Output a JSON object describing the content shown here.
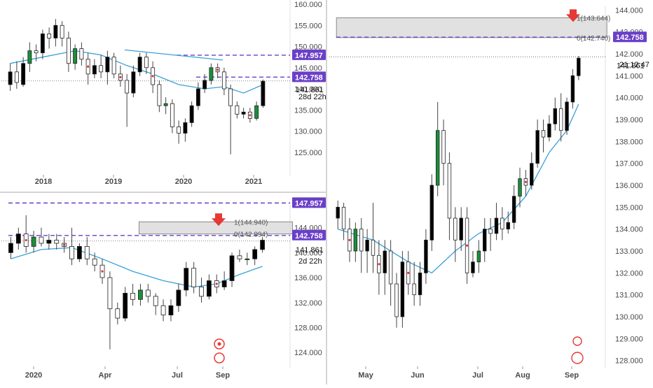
{
  "colors": {
    "up_candle": "#000000",
    "down_candle": "#ffffff",
    "accent_up": "#1b8f3a",
    "accent_down": "#e0303a",
    "ma_line": "#39a0d8",
    "level_line": "#6a3fc8",
    "label_bg": "#6a3fc8",
    "label_text": "#ffffff",
    "zone_fill": "#d9d9d9",
    "arrow": "#e53935",
    "grid_sep": "#e0e0e0",
    "axis_text": "#4a4a4a"
  },
  "icons": [
    "alert-target-icon",
    "event-flag-icon",
    "arrow-down-icon"
  ],
  "chart_data": [
    {
      "type": "candlestick",
      "title": "",
      "placement": "top-left",
      "x_ticks": [
        "2018",
        "2019",
        "2020",
        "2021"
      ],
      "y_ticks": [
        "125.000",
        "130.000",
        "135.000",
        "140.000",
        "145.000",
        "150.000",
        "155.000",
        "160.000"
      ],
      "ylim": [
        120,
        161
      ],
      "price_labels": [
        {
          "value": 147.957,
          "text": "147.957",
          "style": "purple"
        },
        {
          "value": 142.758,
          "text": "142.758",
          "style": "purple"
        },
        {
          "value": 141.861,
          "text": "141.861",
          "style": "plain"
        },
        {
          "text": "28d 22h",
          "style": "countdown"
        }
      ],
      "horizontal_levels": [
        147.957,
        142.758,
        141.861
      ],
      "candles": [
        {
          "o": 141.0,
          "c": 144.0,
          "h": 146.0,
          "l": 139.5
        },
        {
          "o": 144.0,
          "c": 141.5,
          "h": 146.5,
          "l": 140.0
        },
        {
          "o": 141.0,
          "c": 146.0,
          "h": 147.5,
          "l": 140.5
        },
        {
          "o": 146.0,
          "c": 149.0,
          "h": 151.0,
          "l": 144.0
        },
        {
          "o": 149.0,
          "c": 148.5,
          "h": 150.5,
          "l": 146.5
        },
        {
          "o": 148.5,
          "c": 153.0,
          "h": 154.0,
          "l": 147.0
        },
        {
          "o": 153.0,
          "c": 152.0,
          "h": 154.5,
          "l": 149.5
        },
        {
          "o": 152.0,
          "c": 155.0,
          "h": 156.5,
          "l": 150.0
        },
        {
          "o": 155.0,
          "c": 152.0,
          "h": 156.0,
          "l": 150.0
        },
        {
          "o": 152.0,
          "c": 146.0,
          "h": 153.5,
          "l": 144.0
        },
        {
          "o": 146.0,
          "c": 149.5,
          "h": 150.5,
          "l": 144.5
        },
        {
          "o": 149.5,
          "c": 147.0,
          "h": 151.0,
          "l": 145.5
        },
        {
          "o": 147.0,
          "c": 143.5,
          "h": 148.5,
          "l": 141.0
        },
        {
          "o": 143.5,
          "c": 145.5,
          "h": 147.0,
          "l": 142.5
        },
        {
          "o": 145.5,
          "c": 144.0,
          "h": 148.0,
          "l": 142.5
        },
        {
          "o": 144.0,
          "c": 147.5,
          "h": 149.0,
          "l": 141.0
        },
        {
          "o": 147.5,
          "c": 143.5,
          "h": 148.5,
          "l": 142.5
        },
        {
          "o": 143.5,
          "c": 142.0,
          "h": 145.5,
          "l": 140.5
        },
        {
          "o": 142.0,
          "c": 139.0,
          "h": 143.5,
          "l": 131.0
        },
        {
          "o": 139.0,
          "c": 144.0,
          "h": 145.5,
          "l": 138.0
        },
        {
          "o": 144.0,
          "c": 147.5,
          "h": 148.5,
          "l": 143.0
        },
        {
          "o": 147.5,
          "c": 145.0,
          "h": 148.5,
          "l": 143.5
        },
        {
          "o": 145.0,
          "c": 141.0,
          "h": 146.5,
          "l": 139.0
        },
        {
          "o": 141.0,
          "c": 136.0,
          "h": 142.0,
          "l": 134.5
        },
        {
          "o": 136.0,
          "c": 136.5,
          "h": 138.0,
          "l": 134.0
        },
        {
          "o": 136.5,
          "c": 131.0,
          "h": 137.5,
          "l": 129.5
        },
        {
          "o": 131.0,
          "c": 129.5,
          "h": 132.5,
          "l": 127.0
        },
        {
          "o": 129.5,
          "c": 132.0,
          "h": 133.0,
          "l": 127.5
        },
        {
          "o": 132.0,
          "c": 136.0,
          "h": 137.0,
          "l": 131.0
        },
        {
          "o": 136.0,
          "c": 140.0,
          "h": 141.5,
          "l": 135.0
        },
        {
          "o": 140.0,
          "c": 142.0,
          "h": 143.5,
          "l": 139.0
        },
        {
          "o": 142.0,
          "c": 145.0,
          "h": 146.0,
          "l": 141.0
        },
        {
          "o": 145.0,
          "c": 144.0,
          "h": 146.0,
          "l": 142.5
        },
        {
          "o": 144.0,
          "c": 140.0,
          "h": 145.0,
          "l": 138.5
        },
        {
          "o": 140.0,
          "c": 136.0,
          "h": 141.0,
          "l": 124.5
        },
        {
          "o": 136.0,
          "c": 134.0,
          "h": 137.0,
          "l": 133.0
        },
        {
          "o": 134.0,
          "c": 134.5,
          "h": 135.5,
          "l": 133.0
        },
        {
          "o": 134.5,
          "c": 133.0,
          "h": 135.5,
          "l": 132.0
        },
        {
          "o": 133.0,
          "c": 136.0,
          "h": 137.0,
          "l": 132.5
        },
        {
          "o": 136.0,
          "c": 141.8,
          "h": 142.2,
          "l": 135.5
        }
      ],
      "ma_points": [
        [
          0,
          146.0
        ],
        [
          5,
          147.5
        ],
        [
          10,
          149.0
        ],
        [
          14,
          148.0
        ],
        [
          18,
          145.5
        ],
        [
          22,
          143.5
        ],
        [
          26,
          141.0
        ],
        [
          30,
          140.0
        ],
        [
          33,
          140.5
        ],
        [
          36,
          139.0
        ],
        [
          39,
          141.0
        ]
      ]
    },
    {
      "type": "candlestick",
      "title": "",
      "placement": "bottom-left",
      "x_ticks": [
        "2020",
        "Apr",
        "Jul",
        "Sep"
      ],
      "y_ticks": [
        "124.000",
        "128.000",
        "132.000",
        "136.000",
        "140.000",
        "144.000"
      ],
      "ylim": [
        122,
        148
      ],
      "price_labels": [
        {
          "value": 147.957,
          "text": "147.957",
          "style": "purple"
        },
        {
          "value": 142.758,
          "text": "142.758",
          "style": "purple"
        },
        {
          "value": 141.861,
          "text": "141.861",
          "style": "plain"
        },
        {
          "text": "2d 22h",
          "style": "countdown"
        }
      ],
      "fib_labels": [
        {
          "value": 144.94,
          "text": "1(144.940)"
        },
        {
          "value": 142.994,
          "text": "0(142.994)"
        }
      ],
      "zone": [
        142.994,
        144.94
      ],
      "horizontal_levels": [
        147.957,
        142.758,
        141.861
      ],
      "candles": [
        {
          "o": 140.0,
          "c": 141.5,
          "h": 142.5,
          "l": 139.0
        },
        {
          "o": 141.5,
          "c": 143.0,
          "h": 144.0,
          "l": 140.5
        },
        {
          "o": 143.0,
          "c": 141.0,
          "h": 146.0,
          "l": 140.0
        },
        {
          "o": 141.0,
          "c": 142.5,
          "h": 143.5,
          "l": 140.0
        },
        {
          "o": 142.5,
          "c": 141.5,
          "h": 144.0,
          "l": 141.0
        },
        {
          "o": 141.5,
          "c": 142.0,
          "h": 143.0,
          "l": 140.5
        },
        {
          "o": 142.0,
          "c": 141.5,
          "h": 143.0,
          "l": 140.5
        },
        {
          "o": 141.5,
          "c": 141.0,
          "h": 142.5,
          "l": 140.0
        },
        {
          "o": 141.0,
          "c": 139.0,
          "h": 144.0,
          "l": 138.0
        },
        {
          "o": 139.0,
          "c": 141.0,
          "h": 141.5,
          "l": 138.5
        },
        {
          "o": 141.0,
          "c": 139.0,
          "h": 142.5,
          "l": 138.0
        },
        {
          "o": 139.0,
          "c": 138.0,
          "h": 140.0,
          "l": 137.0
        },
        {
          "o": 138.0,
          "c": 136.0,
          "h": 139.0,
          "l": 135.0
        },
        {
          "o": 136.0,
          "c": 131.0,
          "h": 137.0,
          "l": 124.5
        },
        {
          "o": 131.0,
          "c": 129.5,
          "h": 132.0,
          "l": 128.5
        },
        {
          "o": 129.5,
          "c": 133.5,
          "h": 134.5,
          "l": 129.0
        },
        {
          "o": 133.5,
          "c": 132.5,
          "h": 135.0,
          "l": 131.5
        },
        {
          "o": 132.5,
          "c": 134.0,
          "h": 135.0,
          "l": 131.5
        },
        {
          "o": 134.0,
          "c": 133.0,
          "h": 135.0,
          "l": 132.0
        },
        {
          "o": 133.0,
          "c": 131.5,
          "h": 133.5,
          "l": 130.0
        },
        {
          "o": 131.5,
          "c": 130.0,
          "h": 132.5,
          "l": 129.0
        },
        {
          "o": 130.0,
          "c": 131.5,
          "h": 132.5,
          "l": 129.0
        },
        {
          "o": 131.5,
          "c": 134.0,
          "h": 135.0,
          "l": 130.5
        },
        {
          "o": 134.0,
          "c": 137.5,
          "h": 138.5,
          "l": 133.0
        },
        {
          "o": 137.5,
          "c": 134.5,
          "h": 138.5,
          "l": 133.5
        },
        {
          "o": 134.5,
          "c": 133.0,
          "h": 136.0,
          "l": 132.0
        },
        {
          "o": 133.0,
          "c": 135.5,
          "h": 136.5,
          "l": 132.5
        },
        {
          "o": 135.5,
          "c": 134.5,
          "h": 136.5,
          "l": 133.5
        },
        {
          "o": 134.5,
          "c": 135.5,
          "h": 137.0,
          "l": 134.0
        },
        {
          "o": 135.5,
          "c": 139.5,
          "h": 140.0,
          "l": 134.5
        },
        {
          "o": 139.5,
          "c": 139.0,
          "h": 140.5,
          "l": 138.5
        },
        {
          "o": 139.0,
          "c": 139.0,
          "h": 140.0,
          "l": 138.0
        },
        {
          "o": 139.0,
          "c": 140.5,
          "h": 141.0,
          "l": 138.0
        },
        {
          "o": 140.5,
          "c": 142.0,
          "h": 142.5,
          "l": 140.0
        }
      ],
      "ma_points": [
        [
          0,
          139.0
        ],
        [
          4,
          140.5
        ],
        [
          8,
          140.8
        ],
        [
          12,
          139.0
        ],
        [
          16,
          137.0
        ],
        [
          20,
          135.5
        ],
        [
          24,
          134.5
        ],
        [
          27,
          135.0
        ],
        [
          30,
          136.5
        ],
        [
          33,
          137.8
        ]
      ]
    },
    {
      "type": "candlestick",
      "title": "",
      "placement": "right",
      "x_ticks": [
        "May",
        "Jun",
        "Jul",
        "Aug",
        "Sep"
      ],
      "y_ticks": [
        "128.000",
        "129.000",
        "130.000",
        "131.000",
        "132.000",
        "133.000",
        "134.000",
        "135.000",
        "136.000",
        "137.000",
        "138.000",
        "139.000",
        "140.000",
        "141.000",
        "142.000",
        "143.000",
        "144.000"
      ],
      "ylim": [
        127.8,
        144.2
      ],
      "price_labels": [
        {
          "value": 142.758,
          "text": "142.758",
          "style": "purple"
        },
        {
          "value": 141.861,
          "text": "141.861",
          "style": "plain"
        },
        {
          "text": "21:12:47",
          "style": "countdown"
        }
      ],
      "fib_labels": [
        {
          "value": 143.644,
          "text": "1(143.644)"
        },
        {
          "value": 142.74,
          "text": "0(142.740)"
        }
      ],
      "zone": [
        142.74,
        143.644
      ],
      "horizontal_levels": [
        142.758,
        141.861
      ],
      "candles": [
        {
          "o": 134.5,
          "c": 135.0,
          "h": 135.3,
          "l": 134.0
        },
        {
          "o": 135.0,
          "c": 134.0,
          "h": 135.2,
          "l": 133.5
        },
        {
          "o": 134.0,
          "c": 133.0,
          "h": 134.5,
          "l": 132.5
        },
        {
          "o": 133.0,
          "c": 134.0,
          "h": 134.3,
          "l": 132.5
        },
        {
          "o": 134.0,
          "c": 133.0,
          "h": 134.5,
          "l": 132.0
        },
        {
          "o": 133.0,
          "c": 133.5,
          "h": 134.0,
          "l": 132.0
        },
        {
          "o": 133.5,
          "c": 132.8,
          "h": 135.2,
          "l": 132.0
        },
        {
          "o": 132.8,
          "c": 132.0,
          "h": 133.5,
          "l": 131.0
        },
        {
          "o": 132.0,
          "c": 133.0,
          "h": 133.5,
          "l": 131.0
        },
        {
          "o": 133.0,
          "c": 131.5,
          "h": 133.5,
          "l": 130.5
        },
        {
          "o": 131.5,
          "c": 130.0,
          "h": 132.0,
          "l": 129.5
        },
        {
          "o": 130.0,
          "c": 132.5,
          "h": 133.0,
          "l": 129.5
        },
        {
          "o": 132.5,
          "c": 131.5,
          "h": 133.0,
          "l": 131.0
        },
        {
          "o": 131.5,
          "c": 131.0,
          "h": 132.5,
          "l": 130.5
        },
        {
          "o": 131.0,
          "c": 132.0,
          "h": 132.5,
          "l": 130.5
        },
        {
          "o": 132.0,
          "c": 133.5,
          "h": 134.0,
          "l": 131.5
        },
        {
          "o": 133.5,
          "c": 136.0,
          "h": 136.5,
          "l": 133.0
        },
        {
          "o": 136.0,
          "c": 138.5,
          "h": 139.8,
          "l": 135.5
        },
        {
          "o": 138.5,
          "c": 137.0,
          "h": 139.0,
          "l": 136.0
        },
        {
          "o": 137.0,
          "c": 134.5,
          "h": 137.5,
          "l": 133.5
        },
        {
          "o": 134.5,
          "c": 133.5,
          "h": 135.0,
          "l": 132.5
        },
        {
          "o": 133.5,
          "c": 134.5,
          "h": 135.0,
          "l": 133.0
        },
        {
          "o": 134.5,
          "c": 132.0,
          "h": 135.0,
          "l": 131.5
        },
        {
          "o": 132.0,
          "c": 132.5,
          "h": 133.0,
          "l": 131.8
        },
        {
          "o": 132.5,
          "c": 133.0,
          "h": 133.5,
          "l": 132.0
        },
        {
          "o": 133.0,
          "c": 134.0,
          "h": 134.5,
          "l": 132.5
        },
        {
          "o": 134.0,
          "c": 133.8,
          "h": 134.5,
          "l": 133.0
        },
        {
          "o": 133.8,
          "c": 134.5,
          "h": 135.2,
          "l": 133.5
        },
        {
          "o": 134.5,
          "c": 134.0,
          "h": 135.0,
          "l": 133.5
        },
        {
          "o": 134.0,
          "c": 134.3,
          "h": 134.8,
          "l": 133.8
        },
        {
          "o": 134.3,
          "c": 135.5,
          "h": 136.0,
          "l": 134.0
        },
        {
          "o": 135.5,
          "c": 136.3,
          "h": 136.8,
          "l": 135.0
        },
        {
          "o": 136.3,
          "c": 136.0,
          "h": 136.7,
          "l": 135.5
        },
        {
          "o": 136.0,
          "c": 137.0,
          "h": 137.5,
          "l": 135.8
        },
        {
          "o": 137.0,
          "c": 138.5,
          "h": 139.0,
          "l": 136.8
        },
        {
          "o": 138.5,
          "c": 138.2,
          "h": 139.0,
          "l": 137.5
        },
        {
          "o": 138.2,
          "c": 138.8,
          "h": 139.2,
          "l": 138.0
        },
        {
          "o": 138.8,
          "c": 139.5,
          "h": 140.0,
          "l": 138.5
        },
        {
          "o": 139.5,
          "c": 138.5,
          "h": 140.2,
          "l": 138.0
        },
        {
          "o": 138.5,
          "c": 139.8,
          "h": 140.0,
          "l": 138.3
        },
        {
          "o": 139.8,
          "c": 141.0,
          "h": 141.3,
          "l": 139.5
        },
        {
          "o": 141.0,
          "c": 141.8,
          "h": 141.9,
          "l": 140.8
        }
      ],
      "ma_points": [
        [
          0,
          134.0
        ],
        [
          6,
          133.5
        ],
        [
          12,
          132.5
        ],
        [
          16,
          132.0
        ],
        [
          20,
          133.0
        ],
        [
          24,
          133.8
        ],
        [
          28,
          134.3
        ],
        [
          32,
          135.5
        ],
        [
          36,
          137.5
        ],
        [
          39,
          138.5
        ],
        [
          41,
          139.7
        ]
      ]
    }
  ]
}
